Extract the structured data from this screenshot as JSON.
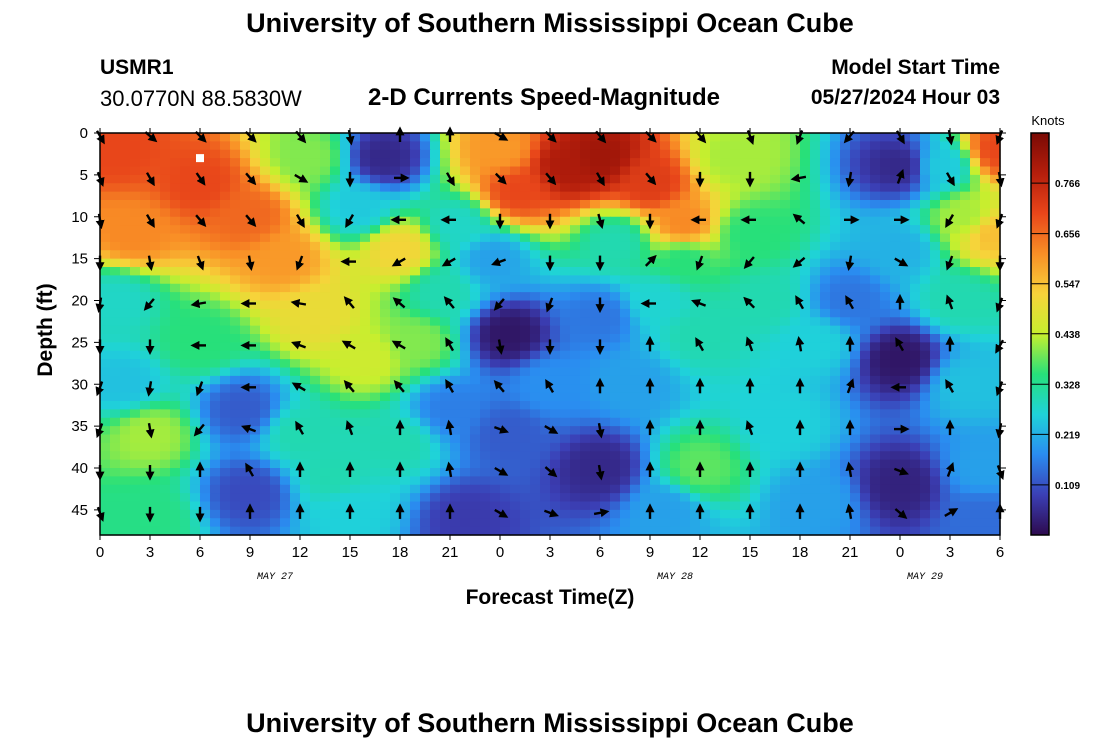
{
  "header": {
    "title": "University of Southern Mississippi Ocean Cube",
    "station": "USMR1",
    "coords": "30.0770N  88.5830W",
    "subtitle": "2-D Currents Speed-Magnitude",
    "model_start_label": "Model Start Time",
    "model_start_time": "05/27/2024 Hour 03"
  },
  "footer": {
    "title": "University of Southern Mississippi Ocean Cube"
  },
  "chart_data": {
    "type": "heatmap",
    "title": "2-D Currents Speed-Magnitude",
    "xlabel": "Forecast Time(Z)",
    "ylabel": "Depth (ft)",
    "x_hours": [
      0,
      54
    ],
    "xlim": [
      0,
      54
    ],
    "ylim": [
      48,
      0
    ],
    "x_tick_labels": [
      "0",
      "3",
      "6",
      "9",
      "12",
      "15",
      "18",
      "21",
      "0",
      "3",
      "6",
      "9",
      "12",
      "15",
      "18",
      "21",
      "0",
      "3",
      "6"
    ],
    "y_ticks": [
      0,
      5,
      10,
      15,
      20,
      25,
      30,
      35,
      40,
      45
    ],
    "date_labels": [
      {
        "label": "MAY 27",
        "hour": 10.5
      },
      {
        "label": "MAY 28",
        "hour": 34.5
      },
      {
        "label": "MAY 29",
        "hour": 49.5
      }
    ],
    "colorbar": {
      "title": "Knots",
      "range": [
        0,
        0.875
      ],
      "tick_labels": [
        "0.766",
        "0.656",
        "0.547",
        "0.438",
        "0.328",
        "0.219",
        "0.109"
      ],
      "tick_values": [
        0.766,
        0.656,
        0.547,
        0.438,
        0.328,
        0.219,
        0.109
      ],
      "colors": [
        "#2d0a4e",
        "#3b3fb5",
        "#2a8cf0",
        "#1fd3d9",
        "#27e07a",
        "#c6ef2e",
        "#f7d33a",
        "#f98f26",
        "#e8461a",
        "#b51e0c",
        "#7a0a04"
      ]
    },
    "speed_points": [
      {
        "h": 1,
        "d": 2,
        "v": 0.7
      },
      {
        "h": 6,
        "d": 6,
        "v": 0.7
      },
      {
        "h": 9,
        "d": 10,
        "v": 0.66
      },
      {
        "h": 2,
        "d": 12,
        "v": 0.62
      },
      {
        "h": 11,
        "d": 15,
        "v": 0.6
      },
      {
        "h": 12.5,
        "d": 3,
        "v": 0.4
      },
      {
        "h": 13,
        "d": 22,
        "v": 0.5
      },
      {
        "h": 15.5,
        "d": 9,
        "v": 0.25
      },
      {
        "h": 17,
        "d": 3,
        "v": 0.05
      },
      {
        "h": 18,
        "d": 14,
        "v": 0.52
      },
      {
        "h": 16,
        "d": 27,
        "v": 0.45
      },
      {
        "h": 19,
        "d": 25,
        "v": 0.4
      },
      {
        "h": 1,
        "d": 20,
        "v": 0.28
      },
      {
        "h": 1.5,
        "d": 30,
        "v": 0.24
      },
      {
        "h": 3,
        "d": 36,
        "v": 0.42
      },
      {
        "h": 3,
        "d": 46,
        "v": 0.34
      },
      {
        "h": 6,
        "d": 25,
        "v": 0.35
      },
      {
        "h": 8.5,
        "d": 33,
        "v": 0.12
      },
      {
        "h": 9,
        "d": 43,
        "v": 0.1
      },
      {
        "h": 12,
        "d": 36,
        "v": 0.3
      },
      {
        "h": 14,
        "d": 41,
        "v": 0.3
      },
      {
        "h": 15,
        "d": 45,
        "v": 0.26
      },
      {
        "h": 18,
        "d": 37,
        "v": 0.3
      },
      {
        "h": 20.5,
        "d": 19,
        "v": 0.3
      },
      {
        "h": 21,
        "d": 33,
        "v": 0.16
      },
      {
        "h": 22,
        "d": 46,
        "v": 0.08
      },
      {
        "h": 21.5,
        "d": 11,
        "v": 0.28
      },
      {
        "h": 24,
        "d": 2,
        "v": 0.6
      },
      {
        "h": 25,
        "d": 7,
        "v": 0.7
      },
      {
        "h": 28,
        "d": 4,
        "v": 0.8
      },
      {
        "h": 30,
        "d": 3,
        "v": 0.82
      },
      {
        "h": 33,
        "d": 6,
        "v": 0.72
      },
      {
        "h": 35,
        "d": 11,
        "v": 0.62
      },
      {
        "h": 31,
        "d": 13,
        "v": 0.3
      },
      {
        "h": 35,
        "d": 15,
        "v": 0.35
      },
      {
        "h": 24.5,
        "d": 24,
        "v": 0.02
      },
      {
        "h": 24.5,
        "d": 36,
        "v": 0.12
      },
      {
        "h": 23.5,
        "d": 15,
        "v": 0.2
      },
      {
        "h": 27,
        "d": 30,
        "v": 0.18
      },
      {
        "h": 30,
        "d": 22,
        "v": 0.15
      },
      {
        "h": 30,
        "d": 40,
        "v": 0.05
      },
      {
        "h": 32,
        "d": 30,
        "v": 0.2
      },
      {
        "h": 33.5,
        "d": 20,
        "v": 0.27
      },
      {
        "h": 36,
        "d": 24,
        "v": 0.3
      },
      {
        "h": 36,
        "d": 40,
        "v": 0.38
      },
      {
        "h": 34,
        "d": 45,
        "v": 0.2
      },
      {
        "h": 38,
        "d": 3,
        "v": 0.42
      },
      {
        "h": 39,
        "d": 12,
        "v": 0.35
      },
      {
        "h": 40,
        "d": 20,
        "v": 0.3
      },
      {
        "h": 41,
        "d": 35,
        "v": 0.26
      },
      {
        "h": 43,
        "d": 25,
        "v": 0.26
      },
      {
        "h": 43,
        "d": 44,
        "v": 0.2
      },
      {
        "h": 45,
        "d": 20,
        "v": 0.15
      },
      {
        "h": 48,
        "d": 4,
        "v": 0.05
      },
      {
        "h": 48,
        "d": 14,
        "v": 0.22
      },
      {
        "h": 48,
        "d": 27,
        "v": 0.02
      },
      {
        "h": 48,
        "d": 42,
        "v": 0.04
      },
      {
        "h": 50.5,
        "d": 4,
        "v": 0.25
      },
      {
        "h": 52,
        "d": 10,
        "v": 0.42
      },
      {
        "h": 54,
        "d": 2,
        "v": 0.7
      },
      {
        "h": 53.5,
        "d": 12,
        "v": 0.55
      },
      {
        "h": 51.5,
        "d": 20,
        "v": 0.3
      },
      {
        "h": 52,
        "d": 30,
        "v": 0.24
      },
      {
        "h": 53,
        "d": 40,
        "v": 0.2
      },
      {
        "h": 53,
        "d": 46,
        "v": 0.14
      }
    ],
    "vector_field": {
      "hours": [
        0,
        3,
        6,
        9,
        12,
        15,
        18,
        21,
        24,
        27,
        30,
        33,
        36,
        39,
        42,
        45,
        48,
        51,
        54
      ],
      "depths": [
        0,
        5,
        10,
        15,
        20,
        25,
        30,
        35,
        40,
        45
      ],
      "directions_deg": [
        [
          150,
          130,
          135,
          135,
          140,
          170,
          0,
          0,
          120,
          135,
          140,
          135,
          140,
          160,
          200,
          220,
          150,
          170,
          200
        ],
        [
          160,
          150,
          145,
          140,
          120,
          180,
          90,
          150,
          135,
          140,
          150,
          140,
          180,
          180,
          260,
          190,
          20,
          150,
          170
        ],
        [
          170,
          150,
          140,
          140,
          150,
          210,
          270,
          270,
          180,
          180,
          165,
          180,
          270,
          270,
          310,
          90,
          90,
          210,
          200
        ],
        [
          180,
          170,
          160,
          170,
          200,
          270,
          240,
          240,
          250,
          180,
          180,
          45,
          200,
          220,
          230,
          190,
          120,
          200,
          180
        ],
        [
          190,
          220,
          260,
          270,
          280,
          320,
          310,
          320,
          220,
          200,
          180,
          270,
          290,
          315,
          330,
          330,
          0,
          340,
          200
        ],
        [
          180,
          180,
          270,
          270,
          290,
          300,
          300,
          330,
          170,
          180,
          180,
          0,
          330,
          340,
          350,
          0,
          330,
          0,
          210
        ],
        [
          200,
          190,
          200,
          270,
          300,
          320,
          320,
          330,
          320,
          330,
          0,
          0,
          0,
          0,
          0,
          20,
          270,
          330,
          200
        ],
        [
          200,
          170,
          220,
          290,
          330,
          340,
          0,
          350,
          110,
          120,
          170,
          0,
          0,
          340,
          0,
          0,
          90,
          0,
          190
        ],
        [
          180,
          180,
          0,
          330,
          0,
          0,
          0,
          350,
          120,
          130,
          170,
          0,
          0,
          0,
          0,
          350,
          110,
          20,
          160
        ],
        [
          160,
          180,
          180,
          0,
          0,
          0,
          0,
          0,
          120,
          110,
          80,
          0,
          0,
          0,
          0,
          350,
          130,
          60,
          0
        ]
      ]
    }
  }
}
